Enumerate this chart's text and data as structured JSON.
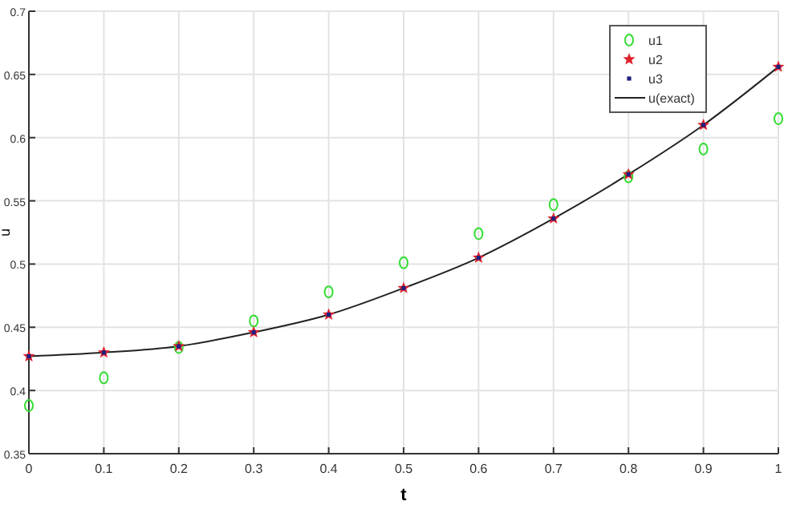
{
  "chart_data": {
    "type": "scatter",
    "xlabel": "t",
    "ylabel": "u",
    "x": [
      0,
      0.1,
      0.2,
      0.3,
      0.4,
      0.5,
      0.6,
      0.7,
      0.8,
      0.9,
      1
    ],
    "series": [
      {
        "name": "u1",
        "color": "#33dd33",
        "marker": "circle",
        "values": [
          0.388,
          0.41,
          0.434,
          0.455,
          0.478,
          0.501,
          0.524,
          0.547,
          0.569,
          0.591,
          0.615
        ]
      },
      {
        "name": "u2",
        "color": "#e0202a",
        "marker": "star",
        "values": [
          0.427,
          0.43,
          0.435,
          0.446,
          0.46,
          0.481,
          0.505,
          0.536,
          0.571,
          0.61,
          0.656
        ]
      },
      {
        "name": "u3",
        "color": "#202080",
        "marker": "square",
        "values": [
          0.427,
          0.43,
          0.435,
          0.446,
          0.46,
          0.481,
          0.505,
          0.536,
          0.571,
          0.61,
          0.656
        ]
      },
      {
        "name": "u(exact)",
        "type": "line",
        "color": "#222222",
        "marker": "none",
        "line_style": "solid",
        "values": [
          0.427,
          0.43,
          0.435,
          0.446,
          0.46,
          0.481,
          0.505,
          0.536,
          0.571,
          0.61,
          0.656
        ]
      }
    ],
    "xlim": [
      0,
      1
    ],
    "xticks": [
      0,
      0.1,
      0.2,
      0.3,
      0.4,
      0.5,
      0.6,
      0.7,
      0.8,
      0.9,
      1
    ],
    "ylim": [
      0.35,
      0.7
    ],
    "yticks": [
      0.35,
      0.4,
      0.45,
      0.5,
      0.55,
      0.6,
      0.65,
      0.7
    ],
    "grid": true,
    "legend": "top right"
  }
}
